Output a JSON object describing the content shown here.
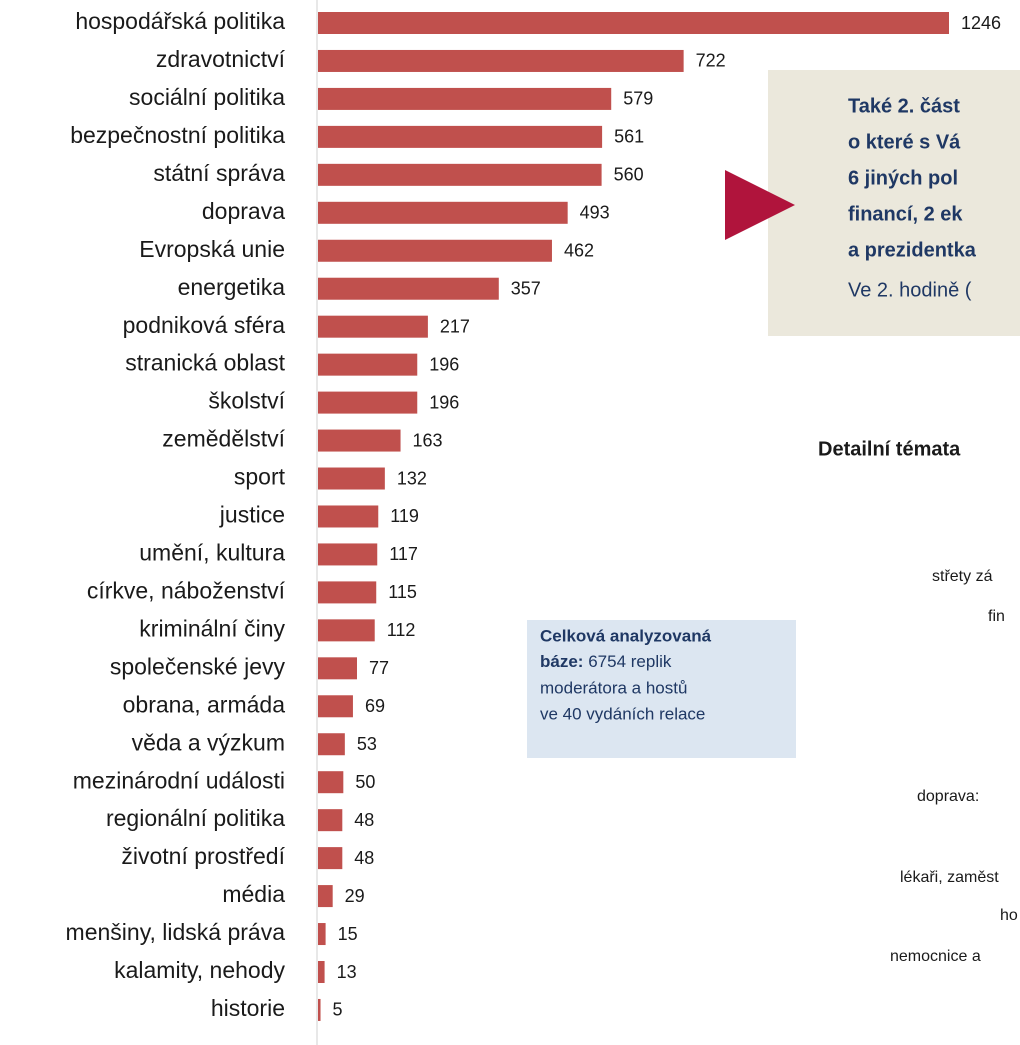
{
  "chart_data": {
    "type": "bar",
    "orientation": "horizontal",
    "color": "#c0504d",
    "categories": [
      "hospodářská politika",
      "zdravotnictví",
      "sociální politika",
      "bezpečnostní politika",
      "státní správa",
      "doprava",
      "Evropská unie",
      "energetika",
      "podniková sféra",
      "stranická oblast",
      "školství",
      "zemědělství",
      "sport",
      "justice",
      "umění, kultura",
      "církve, náboženství",
      "kriminální činy",
      "společenské jevy",
      "obrana, armáda",
      "věda a výzkum",
      "mezinárodní události",
      "regionální politika",
      "životní prostředí",
      "média",
      "menšiny, lidská práva",
      "kalamity, nehody",
      "historie"
    ],
    "values": [
      1246,
      722,
      579,
      561,
      560,
      493,
      462,
      357,
      217,
      196,
      196,
      163,
      132,
      119,
      117,
      115,
      112,
      77,
      69,
      53,
      50,
      48,
      48,
      29,
      15,
      13,
      5
    ]
  },
  "note": {
    "line1": "Celková analyzovaná",
    "line2_bold": "báze:",
    "line2": "6754 replik",
    "line3": "moderátora a hostů",
    "line4": "ve 40 vydáních relace"
  },
  "callout": {
    "lines": [
      "Také 2. část",
      "o které s Vá",
      "6 jiných pol",
      "financí, 2 ek",
      "a prezidentka"
    ],
    "footer": "Ve 2. hodině ("
  },
  "detail": {
    "title": "Detailní témata",
    "items": [
      "střety zá",
      "fin",
      "doprava:",
      "lékaři, zaměst",
      "ho",
      "nemocnice a"
    ]
  }
}
